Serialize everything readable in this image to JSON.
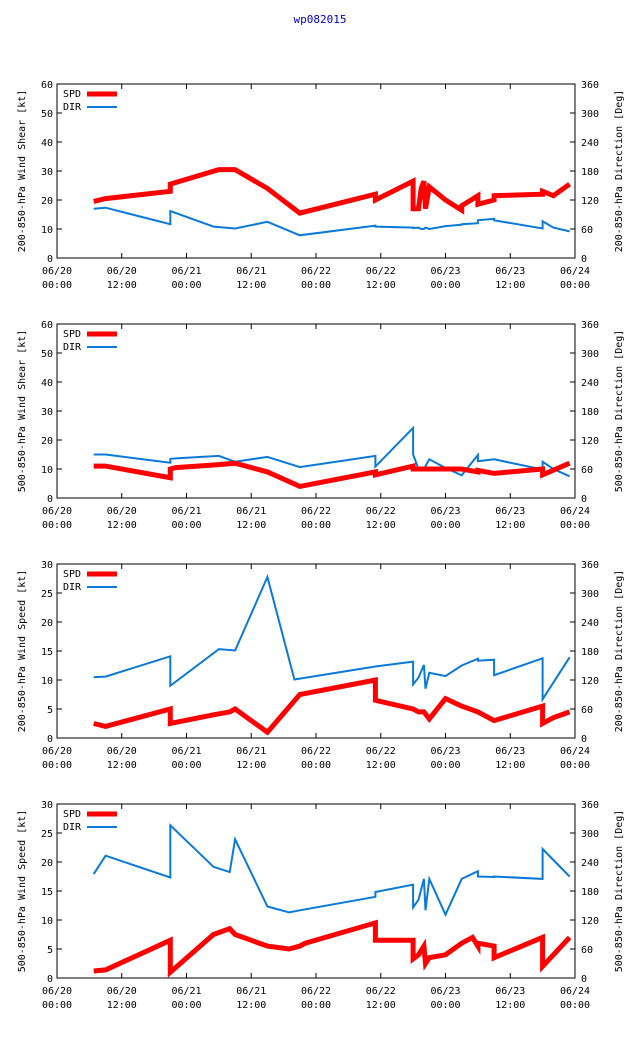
{
  "page_title": "wp082015",
  "colors": {
    "spd": "#ff0000",
    "dir": "#0a7ad8",
    "axis": "#000000",
    "title": "#0000cc"
  },
  "x_ticks": [
    {
      "d": "06/20",
      "t": "00:00"
    },
    {
      "d": "06/20",
      "t": "12:00"
    },
    {
      "d": "06/21",
      "t": "00:00"
    },
    {
      "d": "06/21",
      "t": "12:00"
    },
    {
      "d": "06/22",
      "t": "00:00"
    },
    {
      "d": "06/22",
      "t": "12:00"
    },
    {
      "d": "06/23",
      "t": "00:00"
    },
    {
      "d": "06/23",
      "t": "12:00"
    },
    {
      "d": "06/24",
      "t": "00:00"
    }
  ],
  "chart_data": [
    {
      "type": "line",
      "ylabel": "200-850-hPa Wind Shear [kt]",
      "y2label": "200-850-hPa Direction [Deg]",
      "ylim": [
        0,
        60
      ],
      "yticks": [
        0,
        10,
        20,
        30,
        40,
        50,
        60
      ],
      "y2lim": [
        0,
        360
      ],
      "y2ticks": [
        0,
        60,
        120,
        180,
        240,
        300,
        360
      ],
      "xlim": [
        0,
        96
      ],
      "legend": [
        "SPD",
        "DIR"
      ],
      "series": [
        {
          "name": "SPD",
          "axis": "left",
          "x": [
            6.8,
            9,
            21,
            21,
            30,
            33,
            39,
            45,
            59,
            59,
            66,
            66,
            67,
            67.5,
            68,
            68.3,
            69,
            72,
            75,
            75,
            78,
            78,
            81,
            81,
            90,
            90,
            92,
            95
          ],
          "y": [
            19.5,
            20.5,
            23,
            25.5,
            30.5,
            30.5,
            24,
            15.5,
            22,
            20,
            26.5,
            17,
            17,
            24,
            26.5,
            17,
            24.5,
            20,
            16.5,
            18,
            21.5,
            18.5,
            20,
            21.5,
            22,
            23,
            21.5,
            25.5
          ]
        },
        {
          "name": "DIR",
          "axis": "right",
          "x": [
            6.8,
            9,
            21,
            21,
            29,
            33,
            39,
            45,
            59,
            59,
            66,
            66,
            67,
            67.5,
            68,
            68.3,
            69,
            72,
            75,
            75,
            78,
            78,
            81,
            81,
            90,
            90,
            92,
            95
          ],
          "y": [
            102,
            104,
            70,
            97,
            65,
            61,
            75,
            47,
            67,
            65,
            63,
            62,
            63,
            60,
            60,
            63,
            60,
            66,
            69,
            70,
            72,
            78,
            81,
            78,
            61,
            76,
            63,
            55
          ]
        }
      ]
    },
    {
      "type": "line",
      "ylabel": "500-850-hPa Wind Shear [kt]",
      "y2label": "500-850-hPa Direction [Deg]",
      "ylim": [
        0,
        60
      ],
      "yticks": [
        0,
        10,
        20,
        30,
        40,
        50,
        60
      ],
      "y2lim": [
        0,
        360
      ],
      "y2ticks": [
        0,
        60,
        120,
        180,
        240,
        300,
        360
      ],
      "xlim": [
        0,
        96
      ],
      "legend": [
        "SPD",
        "DIR"
      ],
      "series": [
        {
          "name": "SPD",
          "axis": "left",
          "x": [
            6.8,
            9,
            21,
            21,
            22,
            30,
            33,
            39,
            45,
            59,
            59,
            66,
            66,
            67,
            68,
            69,
            72,
            75,
            78,
            78,
            81,
            90,
            90,
            95
          ],
          "y": [
            11,
            11,
            7,
            10,
            10.5,
            11.5,
            12,
            9,
            4,
            9,
            8,
            11,
            10,
            10,
            10,
            10,
            10,
            10,
            9,
            9.5,
            8.5,
            10,
            8,
            12
          ]
        },
        {
          "name": "DIR",
          "axis": "right",
          "x": [
            6.8,
            9,
            21,
            21,
            22,
            30,
            33,
            39,
            45,
            59,
            59,
            66,
            66,
            67,
            68,
            69,
            72,
            75,
            78,
            78,
            81,
            90,
            90,
            92,
            95
          ],
          "y": [
            90,
            90,
            73,
            81,
            82,
            87,
            75,
            85,
            64,
            87,
            65,
            145,
            90,
            60,
            60,
            80,
            62,
            47,
            89,
            76,
            80,
            59,
            75,
            60,
            45
          ]
        }
      ]
    },
    {
      "type": "line",
      "ylabel": "200-850-hPa Wind Speed [kt]",
      "y2label": "200-850-hPa Direction [Deg]",
      "ylim": [
        0,
        30
      ],
      "yticks": [
        0,
        5,
        10,
        15,
        20,
        25,
        30
      ],
      "y2lim": [
        0,
        360
      ],
      "y2ticks": [
        0,
        60,
        120,
        180,
        240,
        300,
        360
      ],
      "xlim": [
        0,
        96
      ],
      "legend": [
        "SPD",
        "DIR"
      ],
      "series": [
        {
          "name": "SPD",
          "axis": "left",
          "x": [
            6.8,
            9,
            21,
            21,
            29,
            32,
            33,
            39,
            45,
            59,
            59,
            66,
            66,
            67,
            68,
            69,
            72,
            75,
            75,
            78,
            78,
            81,
            90,
            90,
            92,
            95
          ],
          "y": [
            2.5,
            2,
            5,
            2.5,
            4,
            4.5,
            5,
            1,
            7.5,
            10,
            6.5,
            5,
            5,
            4.5,
            4.5,
            3.3,
            6.8,
            5.5,
            5.5,
            4.5,
            4.5,
            3,
            5.5,
            2.5,
            3.5,
            4.5
          ]
        },
        {
          "name": "DIR",
          "axis": "right",
          "x": [
            6.8,
            9,
            21,
            21,
            30,
            33,
            39,
            44,
            59,
            66,
            66,
            67,
            68,
            68.3,
            69,
            72,
            75,
            78,
            78,
            81,
            81,
            90,
            90,
            95
          ],
          "y": [
            126,
            127,
            169,
            108,
            184,
            181,
            333,
            121,
            148,
            158,
            111,
            125,
            151,
            102,
            135,
            128,
            150,
            164,
            160,
            162,
            130,
            165,
            80,
            167
          ]
        }
      ]
    },
    {
      "type": "line",
      "ylabel": "500-850-hPa Wind Speed [kt]",
      "y2label": "500-850-hPa Direction [Deg]",
      "ylim": [
        0,
        30
      ],
      "yticks": [
        0,
        5,
        10,
        15,
        20,
        25,
        30
      ],
      "y2lim": [
        0,
        360
      ],
      "y2ticks": [
        0,
        60,
        120,
        180,
        240,
        300,
        360
      ],
      "xlim": [
        0,
        96
      ],
      "legend": [
        "SPD",
        "DIR"
      ],
      "series": [
        {
          "name": "SPD",
          "axis": "left",
          "x": [
            6.8,
            9,
            21,
            21,
            29,
            32,
            33,
            39,
            43,
            45,
            46,
            59,
            59,
            66,
            66,
            67,
            68,
            68.3,
            69,
            72,
            75,
            77,
            78,
            78,
            81,
            81,
            90,
            90,
            92,
            95
          ],
          "y": [
            1.2,
            1.4,
            6.5,
            1,
            7.5,
            8.5,
            7.5,
            5.5,
            5,
            5.5,
            6,
            9.5,
            6.5,
            6.5,
            3.3,
            4,
            5.5,
            2.5,
            3.5,
            4,
            6,
            7,
            5.5,
            6,
            5.5,
            3.5,
            7,
            2,
            4,
            7
          ]
        },
        {
          "name": "DIR",
          "axis": "right",
          "x": [
            6.8,
            9,
            21,
            21,
            29,
            32,
            33,
            39,
            43,
            45,
            59,
            59,
            66,
            66,
            67,
            68,
            68.3,
            69,
            72,
            75,
            78,
            78,
            81,
            81,
            90,
            90,
            95
          ],
          "y": [
            215,
            253,
            208,
            316,
            230,
            219,
            287,
            148,
            136,
            140,
            168,
            178,
            193,
            146,
            162,
            205,
            140,
            205,
            131,
            205,
            221,
            210,
            209,
            210,
            205,
            267,
            210
          ]
        }
      ]
    }
  ]
}
